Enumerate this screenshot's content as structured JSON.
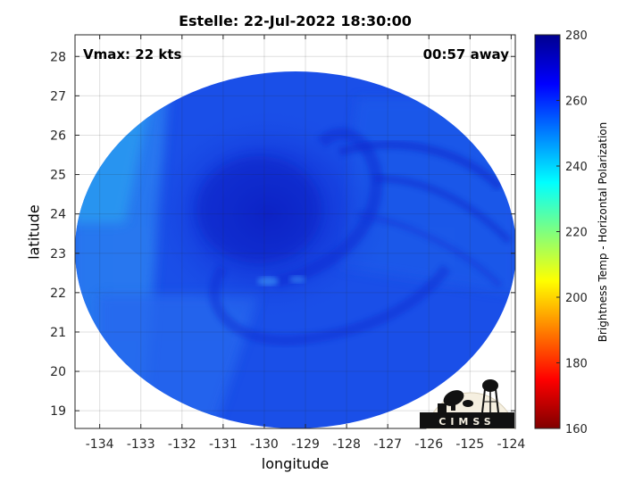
{
  "title": "Estelle: 22-Jul-2022 18:30:00",
  "vmax_label": "Vmax: 22 kts",
  "time_away_label": "00:57 away",
  "logo_text": "CIMSS",
  "map": {
    "xlabel": "longitude",
    "ylabel": "latitude",
    "x_ticks": [
      -134,
      -133,
      -132,
      -131,
      -130,
      -129,
      -128,
      -127,
      -126,
      -125,
      -124
    ],
    "y_ticks": [
      19,
      20,
      21,
      22,
      23,
      24,
      25,
      26,
      27,
      28
    ],
    "xlim": [
      -134.6,
      -123.9
    ],
    "ylim": [
      18.55,
      28.55
    ],
    "grid": true,
    "storm_center": {
      "lon": -129.6,
      "lat": 22.4
    }
  },
  "colorbar": {
    "label": "Brightness Temp - Horizontal Polarization",
    "ticks": [
      160,
      180,
      200,
      220,
      240,
      260,
      280
    ],
    "range": [
      160,
      280
    ],
    "colormap": "jet"
  },
  "colors": {
    "swath_base": "#1a4fe8",
    "swath_dark": "#0e2ad0",
    "swath_light": "#2a9cf0"
  }
}
